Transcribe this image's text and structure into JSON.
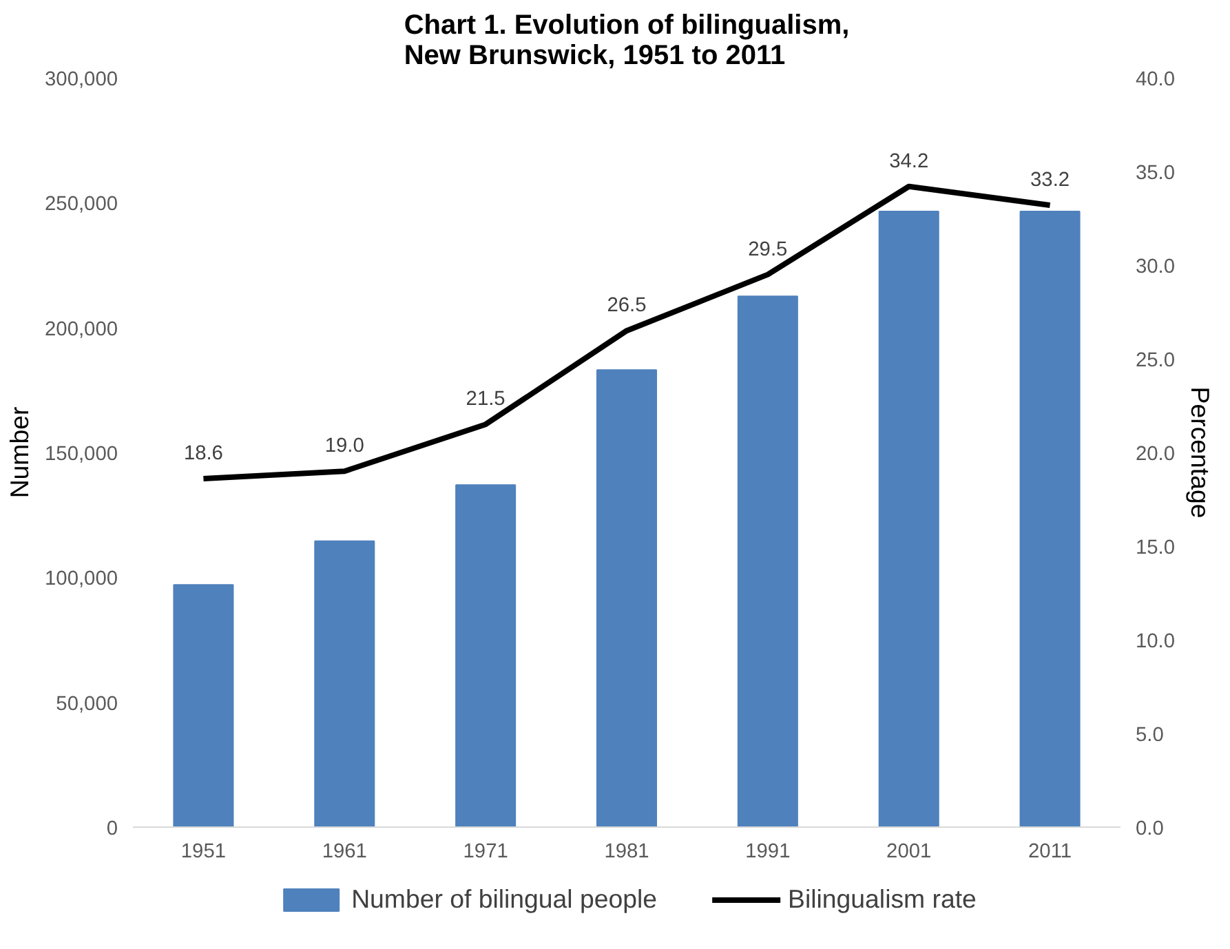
{
  "chart_data": {
    "type": "bar",
    "title": "Chart 1. Evolution of bilingualism,\nNew Brunswick, 1951 to 2011",
    "ylabel": "Number",
    "y2label": "Percentage",
    "categories": [
      "1951",
      "1961",
      "1971",
      "1981",
      "1991",
      "2001",
      "2011"
    ],
    "series": [
      {
        "name": "Number of bilingual people",
        "color": "#4f81bd",
        "values": [
          97000,
          114500,
          137000,
          183000,
          212500,
          246500,
          246500
        ]
      },
      {
        "name": "Bilingualism rate",
        "type": "line",
        "axis": "y2",
        "color": "#000000",
        "values": [
          18.6,
          19.0,
          21.5,
          26.5,
          29.5,
          34.2,
          33.2
        ],
        "value_labels": [
          "18.6",
          "19.0",
          "21.5",
          "26.5",
          "29.5",
          "34.2",
          "33.2"
        ]
      }
    ],
    "ylim": [
      0,
      300000
    ],
    "yticks": [
      {
        "value": 0,
        "label": "0"
      },
      {
        "value": 50000,
        "label": "50,000"
      },
      {
        "value": 100000,
        "label": "100,000"
      },
      {
        "value": 150000,
        "label": "150,000"
      },
      {
        "value": 200000,
        "label": "200,000"
      },
      {
        "value": 250000,
        "label": "250,000"
      },
      {
        "value": 300000,
        "label": "300,000"
      }
    ],
    "y2lim": [
      0,
      40
    ],
    "y2ticks": [
      {
        "value": 0,
        "label": "0.0"
      },
      {
        "value": 5,
        "label": "5.0"
      },
      {
        "value": 10,
        "label": "10.0"
      },
      {
        "value": 15,
        "label": "15.0"
      },
      {
        "value": 20,
        "label": "20.0"
      },
      {
        "value": 25,
        "label": "25.0"
      },
      {
        "value": 30,
        "label": "30.0"
      },
      {
        "value": 35,
        "label": "35.0"
      },
      {
        "value": 40,
        "label": "40.0"
      }
    ],
    "grid": false,
    "legend": "bottom",
    "marker": "none",
    "line_style": "solid"
  }
}
